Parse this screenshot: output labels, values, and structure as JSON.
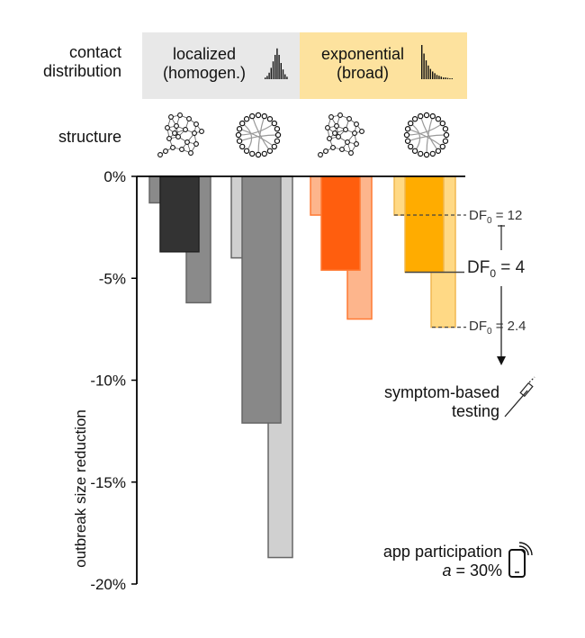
{
  "header": {
    "contact_distribution_label_1": "contact",
    "contact_distribution_label_2": "distribution",
    "localized_line1": "localized",
    "localized_line2": "(homogen.)",
    "exponential_line1": "exponential",
    "exponential_line2": "(broad)",
    "structure_label": "structure",
    "localized_bg": "#e8e8e8",
    "exponential_bg": "#fde29e"
  },
  "chart_data": {
    "type": "bar",
    "ylabel": "outbreak size reduction",
    "ylim": [
      -20,
      0
    ],
    "yticks": [
      0,
      -5,
      -10,
      -15,
      -20
    ],
    "ytick_labels": [
      "0%",
      "-5%",
      "-10%",
      "-15%",
      "-20%"
    ],
    "groups": [
      {
        "distribution": "localized",
        "structure": "clustered",
        "bars": [
          {
            "df0": "12",
            "value": -1.3,
            "color": "#8a8a8a"
          },
          {
            "df0": "4",
            "value": -3.7,
            "color": "#333333"
          },
          {
            "df0": "2.4",
            "value": -6.2,
            "color": "#8a8a8a"
          }
        ]
      },
      {
        "distribution": "localized",
        "structure": "random",
        "bars": [
          {
            "df0": "12",
            "value": -4.0,
            "color": "#d0d0d0"
          },
          {
            "df0": "4",
            "value": -12.1,
            "color": "#888888"
          },
          {
            "df0": "2.4",
            "value": -18.7,
            "color": "#d0d0d0"
          }
        ]
      },
      {
        "distribution": "exponential",
        "structure": "clustered",
        "bars": [
          {
            "df0": "12",
            "value": -1.9,
            "color": "#fdb58c"
          },
          {
            "df0": "4",
            "value": -4.6,
            "color": "#ff5e0e"
          },
          {
            "df0": "2.4",
            "value": -7.0,
            "color": "#fdb58c"
          }
        ]
      },
      {
        "distribution": "exponential",
        "structure": "random",
        "bars": [
          {
            "df0": "12",
            "value": -1.9,
            "color": "#ffd985"
          },
          {
            "df0": "4",
            "value": -4.7,
            "color": "#ffac00"
          },
          {
            "df0": "2.4",
            "value": -7.4,
            "color": "#ffd985"
          }
        ]
      }
    ],
    "annotations": {
      "df_top": {
        "prefix": "DF",
        "sub": "0",
        "suffix": " = 12"
      },
      "df_mid": {
        "prefix": "DF",
        "sub": "0",
        "suffix": " = 4"
      },
      "df_bot": {
        "prefix": "DF",
        "sub": "0",
        "suffix": " = 2.4"
      },
      "testing_line1": "symptom-based",
      "testing_line2": "testing",
      "app_line1": "app participation",
      "app_var": "a",
      "app_rest": " = 30%"
    }
  }
}
